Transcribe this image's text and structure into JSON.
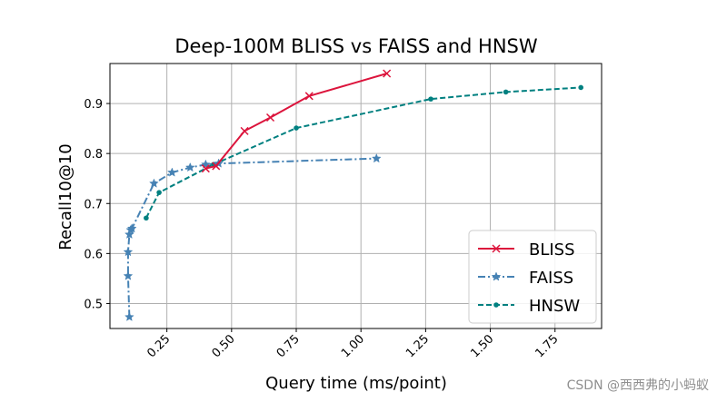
{
  "chart_data": {
    "type": "line",
    "title": "Deep-100M BLISS vs FAISS and HNSW",
    "xlabel": "Query time (ms/point)",
    "ylabel": "Recall10@10",
    "xlim": [
      0.03,
      1.93
    ],
    "ylim": [
      0.45,
      0.98
    ],
    "xticks": [
      0.25,
      0.5,
      0.75,
      1.0,
      1.25,
      1.5,
      1.75
    ],
    "xtick_labels": [
      "0.25",
      "0.50",
      "0.75",
      "1.00",
      "1.25",
      "1.50",
      "1.75"
    ],
    "yticks": [
      0.5,
      0.6,
      0.7,
      0.8,
      0.9
    ],
    "ytick_labels": [
      "0.5",
      "0.6",
      "0.7",
      "0.8",
      "0.9"
    ],
    "grid": true,
    "legend_position": "lower-right",
    "series": [
      {
        "name": "BLISS",
        "color": "#dc143c",
        "line_style": "solid",
        "marker": "x",
        "x": [
          0.4,
          0.44,
          0.55,
          0.65,
          0.8,
          1.1
        ],
        "y": [
          0.77,
          0.775,
          0.845,
          0.872,
          0.915,
          0.96
        ]
      },
      {
        "name": "FAISS",
        "color": "#4682b4",
        "line_style": "dashdot",
        "marker": "star",
        "x": [
          0.105,
          0.1,
          0.1,
          0.105,
          0.11,
          0.115,
          0.2,
          0.27,
          0.34,
          0.4,
          0.45,
          1.06
        ],
        "y": [
          0.473,
          0.555,
          0.603,
          0.638,
          0.647,
          0.65,
          0.74,
          0.762,
          0.772,
          0.778,
          0.78,
          0.79
        ]
      },
      {
        "name": "HNSW",
        "color": "#008080",
        "line_style": "dashed",
        "marker": "dot",
        "x": [
          0.17,
          0.22,
          0.43,
          0.75,
          1.27,
          1.56,
          1.85
        ],
        "y": [
          0.671,
          0.722,
          0.778,
          0.851,
          0.909,
          0.923,
          0.932
        ]
      }
    ]
  },
  "watermark": "CSDN @西西弗的小蚂蚁"
}
